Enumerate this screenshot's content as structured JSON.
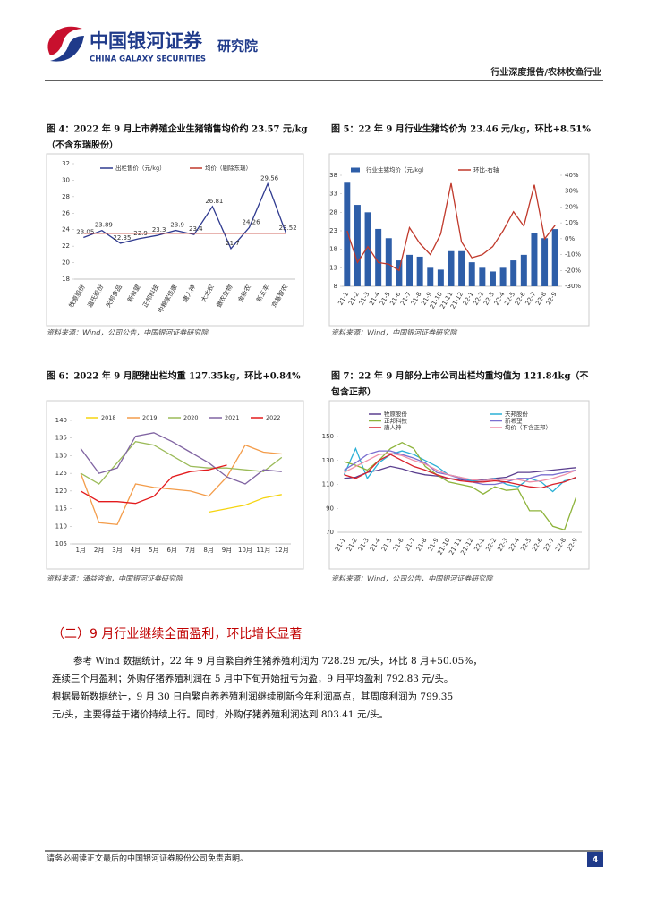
{
  "header": {
    "logo_cn": "中国银河证券",
    "logo_en": "CHINA GALAXY SECURITIES",
    "institute": "研究院",
    "report_type": "行业深度报告/农林牧渔行业"
  },
  "chart_data": [
    {
      "type": "line",
      "title": [
        "图 4：2022 年 9 月上市养殖企业生猪销售均价约 23.57 元/kg",
        "（不含东瑞股份）"
      ],
      "categories": [
        "牧原股份",
        "温氏股份",
        "天邦食品",
        "新希望",
        "正邦科技",
        "中粮家佳康",
        "唐人神",
        "大北农",
        "傲农生物",
        "金新农",
        "新五丰",
        "京基智农"
      ],
      "series": [
        {
          "name": "出栏售价（元/kg）",
          "color": "#2f3a8f",
          "show_values": true,
          "values": [
            23.05,
            23.89,
            22.35,
            22.9,
            23.3,
            23.9,
            23.4,
            26.81,
            21.7,
            24.26,
            29.56,
            23.52
          ]
        },
        {
          "name": "均价（剔除东瑞）",
          "color": "#c0392b",
          "values": [
            23.57,
            23.57,
            23.57,
            23.57,
            23.57,
            23.57,
            23.57,
            23.57,
            23.57,
            23.57,
            23.57,
            23.57
          ]
        }
      ],
      "ylim": [
        18,
        32
      ],
      "yticks": [
        18,
        20,
        22,
        24,
        26,
        28,
        30,
        32
      ],
      "grid": false,
      "source": "资料来源：Wind，公司公告，中国银河证券研究院"
    },
    {
      "type": "bar",
      "title": [
        "图 5：22 年 9 月行业生猪均价为 23.46 元/kg，环比+8.51%"
      ],
      "categories": [
        "21-1",
        "21-2",
        "21-3",
        "21-4",
        "21-5",
        "21-6",
        "21-7",
        "21-8",
        "21-9",
        "21-10",
        "21-11",
        "21-12",
        "22-1",
        "22-2",
        "22-3",
        "22-4",
        "22-5",
        "22-6",
        "22-7",
        "22-8",
        "22-9"
      ],
      "series": [
        {
          "name": "行业生猪均价（元/kg）",
          "color": "#2e5ea8",
          "values": [
            36,
            30,
            28,
            23.5,
            21,
            15,
            16.5,
            16,
            13,
            12.5,
            17.5,
            17.5,
            14.5,
            13,
            12,
            13,
            15,
            16.5,
            22.5,
            21,
            23.46
          ]
        },
        {
          "name": "环比-右轴",
          "color": "#c0392b",
          "type": "line",
          "axis": "y2",
          "values": [
            5,
            -15,
            -5,
            -15,
            -16,
            -20,
            7,
            -3,
            -10,
            3,
            35,
            -2,
            -12,
            -10,
            -5,
            5,
            17,
            8,
            34,
            0,
            8.51
          ]
        }
      ],
      "ylim": [
        8,
        38
      ],
      "yticks": [
        8,
        13,
        18,
        23,
        28,
        33,
        38
      ],
      "y2lim": [
        -30,
        40
      ],
      "y2ticks": [
        {
          "value": -30,
          "label": "-30%"
        },
        {
          "value": -20,
          "label": "-20%"
        },
        {
          "value": -10,
          "label": "-10%"
        },
        {
          "value": 0,
          "label": "0%"
        },
        {
          "value": 10,
          "label": "10%"
        },
        {
          "value": 20,
          "label": "20%"
        },
        {
          "value": 30,
          "label": "30%"
        },
        {
          "value": 40,
          "label": "40%"
        }
      ],
      "grid": false,
      "source": "资料来源：Wind，中国银河证券研究院"
    },
    {
      "type": "line",
      "title": [
        "图 6：2022 年 9 月肥猪出栏均重 127.35kg，环比+0.84%"
      ],
      "categories": [
        "1月",
        "2月",
        "3月",
        "4月",
        "5月",
        "6月",
        "7月",
        "8月",
        "9月",
        "10月",
        "11月",
        "12月"
      ],
      "series": [
        {
          "name": "2018",
          "color": "#f5d40f",
          "values": [
            null,
            null,
            null,
            null,
            null,
            null,
            null,
            114,
            115,
            116,
            118,
            119
          ]
        },
        {
          "name": "2019",
          "color": "#f39c4a",
          "values": [
            125,
            111,
            110.5,
            122,
            121,
            120.5,
            120,
            118.5,
            124,
            133,
            131,
            130.5
          ]
        },
        {
          "name": "2020",
          "color": "#9bbb59",
          "values": [
            125,
            122,
            128,
            134,
            133,
            130,
            127,
            126.5,
            126.5,
            126,
            125.5,
            129.5
          ]
        },
        {
          "name": "2021",
          "color": "#8064a2",
          "values": [
            132,
            125,
            126.5,
            135.5,
            136.5,
            134,
            131,
            128,
            124,
            122,
            126,
            125.5
          ]
        },
        {
          "name": "2022",
          "color": "#e31a1c",
          "values": [
            120,
            117,
            117,
            116.5,
            118.5,
            124,
            125.5,
            126,
            127.35,
            null,
            null,
            null
          ]
        }
      ],
      "ylim": [
        105,
        140
      ],
      "yticks": [
        105,
        110,
        115,
        120,
        125,
        130,
        135,
        140
      ],
      "grid": false,
      "source": "资料来源：涌益咨询，中国银河证券研究院"
    },
    {
      "type": "line",
      "title": [
        "图 7：22 年 9 月部分上市公司出栏均重均值为 121.84kg（不",
        "包含正邦）"
      ],
      "categories": [
        "21-1",
        "21-2",
        "21-3",
        "21-4",
        "21-5",
        "21-6",
        "21-7",
        "21-8",
        "21-9",
        "21-10",
        "21-11",
        "21-12",
        "22-1",
        "22-2",
        "22-3",
        "22-4",
        "22-5",
        "22-6",
        "22-7",
        "22-8",
        "22-9"
      ],
      "series": [
        {
          "name": "牧原股份",
          "color": "#5b3f8f",
          "values": [
            115,
            116,
            120,
            122,
            125,
            123,
            120,
            118,
            117,
            115,
            114,
            113,
            114,
            115,
            116,
            120,
            120,
            121,
            122,
            123,
            124
          ]
        },
        {
          "name": "天邦股份",
          "color": "#2ab0d6",
          "values": [
            118,
            140,
            115,
            128,
            135,
            138,
            135,
            130,
            125,
            118,
            116,
            113,
            112,
            115,
            110,
            108,
            115,
            112,
            104,
            113,
            115
          ]
        },
        {
          "name": "正邦科技",
          "color": "#8db33a",
          "values": [
            129,
            126,
            122,
            130,
            140,
            145,
            140,
            125,
            118,
            112,
            110,
            108,
            102,
            108,
            105,
            106,
            88,
            88,
            75,
            72,
            99
          ]
        },
        {
          "name": "新希望",
          "color": "#7b6fd0",
          "values": [
            122,
            128,
            135,
            138,
            138,
            135,
            132,
            128,
            120,
            118,
            115,
            112,
            110,
            110,
            112,
            115,
            115,
            118,
            118,
            120,
            122
          ]
        },
        {
          "name": "唐人神",
          "color": "#d9202a",
          "values": [
            118,
            115,
            120,
            130,
            135,
            130,
            125,
            122,
            118,
            115,
            113,
            112,
            112,
            113,
            112,
            110,
            108,
            107,
            110,
            112,
            116
          ]
        },
        {
          "name": "均价（不含正邦）",
          "color": "#f08fa8",
          "values": [
            120,
            125,
            130,
            135,
            136,
            134,
            130,
            127,
            122,
            118,
            116,
            114,
            113,
            114,
            114,
            114,
            112,
            113,
            115,
            118,
            121.84
          ]
        }
      ],
      "ylim": [
        70,
        150
      ],
      "yticks": [
        70,
        90,
        110,
        130,
        150
      ],
      "grid": false,
      "source": "资料来源：Wind，公司公告，中国银河证券研究院"
    }
  ],
  "section": {
    "heading": "（二）9 月行业继续全面盈利，环比增长显著",
    "paragraph": [
      "参考 Wind 数据统计，22 年 9 月自繁自养生猪养殖利润为 728.29 元/头，环比 8 月+50.05%，",
      "连续三个月盈利；外购仔猪养殖利润在 5 月中下旬开始扭亏为盈，9 月平均盈利 792.83 元/头。",
      "根据最新数据统计，9 月 30 日自繁自养养殖利润继续刷新今年利润高点，其周度利润为 799.35",
      "元/头，主要得益于猪价持续上行。同时，外购仔猪养殖利润达到 803.41 元/头。"
    ]
  },
  "footer": {
    "disclaimer": "请务必阅读正文最后的中国银河证券股份公司免责声明。",
    "page": "4"
  }
}
